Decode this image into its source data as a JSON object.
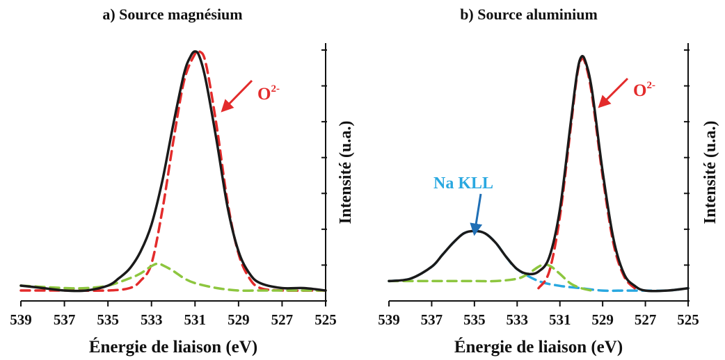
{
  "chart_data": [
    {
      "type": "line",
      "title": "a) Source magnésium",
      "xlabel": "Énergie de liaison (eV)",
      "ylabel": "Intensité (u.a.)",
      "xlim": [
        539,
        525
      ],
      "x_reversed": true,
      "xticks": [
        "539",
        "537",
        "535",
        "533",
        "531",
        "529",
        "527",
        "525"
      ],
      "y_tick_count": 7,
      "y_tick_labels_shown": false,
      "annotations": [
        {
          "text": "O",
          "sup": "2-",
          "color": "#e32b2b",
          "points_to_x": 530.6
        }
      ],
      "series": [
        {
          "name": "",
          "role": "spectre mesuré",
          "color": "#1a1a1a",
          "style": "solid",
          "x": [
            539,
            538,
            537,
            536,
            535,
            534.5,
            534,
            533.5,
            533,
            532.5,
            532,
            531.5,
            531.2,
            531,
            530.8,
            530.5,
            530,
            529.5,
            529,
            528.5,
            528,
            527,
            526,
            525
          ],
          "y": [
            0.04,
            0.03,
            0.02,
            0.02,
            0.04,
            0.07,
            0.11,
            0.18,
            0.29,
            0.47,
            0.7,
            0.91,
            0.98,
            1.0,
            0.98,
            0.88,
            0.63,
            0.36,
            0.18,
            0.09,
            0.05,
            0.03,
            0.03,
            0.02
          ]
        },
        {
          "name": "O²⁻",
          "role": "composante O2-",
          "color": "#e32b2b",
          "style": "dashed",
          "x": [
            539,
            537,
            535,
            534,
            533.5,
            533,
            532.5,
            532,
            531.5,
            531,
            530.8,
            530.5,
            530,
            529.5,
            529,
            528.5,
            528,
            527,
            525
          ],
          "y": [
            0.02,
            0.02,
            0.02,
            0.03,
            0.06,
            0.13,
            0.35,
            0.63,
            0.88,
            0.99,
            1.0,
            0.95,
            0.69,
            0.38,
            0.17,
            0.07,
            0.03,
            0.02,
            0.02
          ]
        },
        {
          "name": "",
          "role": "composante secondaire",
          "color": "#8dc63f",
          "style": "dashed",
          "x": [
            539,
            537,
            536,
            535,
            534,
            533.5,
            533,
            532.7,
            532.4,
            532,
            531.5,
            531,
            530,
            529,
            528,
            527,
            525
          ],
          "y": [
            0.04,
            0.03,
            0.03,
            0.04,
            0.07,
            0.09,
            0.12,
            0.13,
            0.12,
            0.1,
            0.07,
            0.05,
            0.03,
            0.02,
            0.02,
            0.02,
            0.02
          ]
        }
      ]
    },
    {
      "type": "line",
      "title": "b) Source aluminium",
      "xlabel": "Énergie de liaison (eV)",
      "ylabel": "Intensité (u.a.)",
      "xlim": [
        539,
        525
      ],
      "x_reversed": true,
      "xticks": [
        "539",
        "537",
        "535",
        "533",
        "531",
        "529",
        "527",
        "525"
      ],
      "y_tick_count": 7,
      "y_tick_labels_shown": false,
      "annotations": [
        {
          "text": "O",
          "sup": "2-",
          "color": "#e32b2b",
          "points_to_x": 529.5
        },
        {
          "text": "Na KLL",
          "sup": "",
          "color": "#29a8e0",
          "points_to_x": 535.0
        }
      ],
      "series": [
        {
          "name": "",
          "role": "spectre mesuré",
          "color": "#1a1a1a",
          "style": "solid",
          "x": [
            539,
            538,
            537,
            536.5,
            536,
            535.5,
            535,
            534.5,
            534,
            533.5,
            533,
            532.5,
            532,
            531.5,
            531,
            530.5,
            530.2,
            530,
            529.8,
            529.5,
            529,
            528.5,
            528,
            527.5,
            527,
            526,
            525
          ],
          "y": [
            0.06,
            0.07,
            0.12,
            0.17,
            0.22,
            0.26,
            0.27,
            0.26,
            0.22,
            0.16,
            0.11,
            0.09,
            0.1,
            0.16,
            0.36,
            0.72,
            0.93,
            1.0,
            0.98,
            0.86,
            0.52,
            0.24,
            0.09,
            0.04,
            0.02,
            0.02,
            0.03
          ]
        },
        {
          "name": "Na KLL",
          "role": "composante Na KLL",
          "color": "#29a8e0",
          "style": "dashed",
          "x": [
            539,
            538,
            537,
            536.5,
            536,
            535.5,
            535,
            534.5,
            534,
            533.5,
            533,
            532,
            531,
            530,
            529,
            528,
            527,
            526,
            525
          ],
          "y": [
            0.06,
            0.07,
            0.12,
            0.17,
            0.22,
            0.26,
            0.27,
            0.26,
            0.22,
            0.16,
            0.11,
            0.06,
            0.04,
            0.03,
            0.02,
            0.02,
            0.02,
            0.02,
            0.03
          ]
        },
        {
          "name": "O²⁻",
          "role": "composante O2-",
          "color": "#e32b2b",
          "style": "dashed",
          "x": [
            532,
            531.5,
            531,
            530.5,
            530.2,
            530,
            529.8,
            529.5,
            529,
            528.5,
            528,
            527.5
          ],
          "y": [
            0.03,
            0.1,
            0.33,
            0.7,
            0.92,
            0.99,
            0.97,
            0.84,
            0.5,
            0.22,
            0.08,
            0.03
          ]
        },
        {
          "name": "",
          "role": "composante secondaire",
          "color": "#8dc63f",
          "style": "dashed",
          "x": [
            539,
            537,
            535,
            534,
            533,
            532.5,
            532,
            531.7,
            531.4,
            531,
            530.5,
            530,
            529.5
          ],
          "y": [
            0.06,
            0.06,
            0.06,
            0.06,
            0.07,
            0.09,
            0.12,
            0.13,
            0.12,
            0.09,
            0.05,
            0.03,
            0.02
          ]
        }
      ]
    }
  ]
}
